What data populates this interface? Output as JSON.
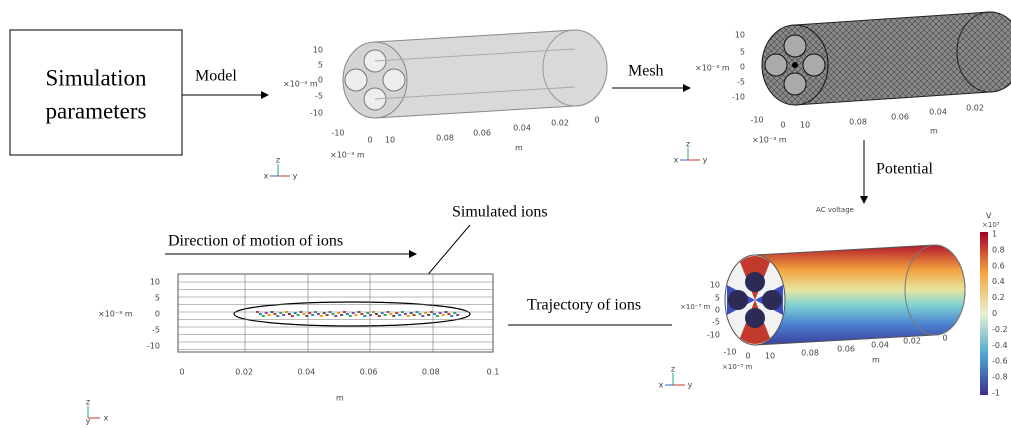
{
  "box": {
    "lines": [
      "Simulation",
      "parameters"
    ]
  },
  "arrows": {
    "model": "Model",
    "mesh": "Mesh",
    "potential": "Potential",
    "trajectory": "Trajectory  of ions",
    "direction": "Direction of motion of ions",
    "simulated": "Simulated ions"
  },
  "model_view": {
    "left_ticks": [
      "10",
      "5",
      "0",
      "-5",
      "-10"
    ],
    "left_unit": "×10⁻³ m",
    "bottom_ticks": [
      "-10",
      "0",
      "10",
      "0.08",
      "0.06",
      "0.04",
      "0.02",
      "0"
    ],
    "bottom_unit": "×10⁻³ m",
    "axis_label": "m",
    "triad": [
      "z",
      "x",
      "y"
    ]
  },
  "mesh_view": {
    "left_ticks": [
      "10",
      "5",
      "0",
      "-5",
      "-10"
    ],
    "left_unit": "×10⁻³ m",
    "bottom_ticks": [
      "-10",
      "0",
      "10",
      "0.08",
      "0.06",
      "0.04",
      "0.02"
    ],
    "bottom_unit": "×10⁻³ m",
    "axis_label": "m",
    "triad": [
      "z",
      "x",
      "y"
    ]
  },
  "potential_view": {
    "title": "AC voltage",
    "left_ticks": [
      "10",
      "5",
      "0",
      "-5",
      "-10"
    ],
    "left_unit": "×10⁻³ m",
    "bottom_ticks": [
      "-10",
      "0",
      "10",
      "0.08",
      "0.06",
      "0.04",
      "0.02",
      "0"
    ],
    "bottom_unit": "×10⁻³ m",
    "axis_label": "m",
    "triad": [
      "z",
      "x",
      "y"
    ],
    "colorbar": {
      "unit": "V",
      "scale": "×10³",
      "ticks": [
        "1",
        "0.8",
        "0.6",
        "0.4",
        "0.2",
        "0",
        "-0.2",
        "-0.4",
        "-0.6",
        "-0.8",
        "-1"
      ]
    }
  },
  "trajectory_plot": {
    "y_ticks": [
      "10",
      "5",
      "0",
      "-5",
      "-10"
    ],
    "y_label": "×10⁻³ m",
    "x_ticks": [
      "0",
      "0.02",
      "0.04",
      "0.06",
      "0.08",
      "0.1"
    ],
    "x_label": "m",
    "triad": [
      "z",
      "y",
      "x"
    ]
  }
}
